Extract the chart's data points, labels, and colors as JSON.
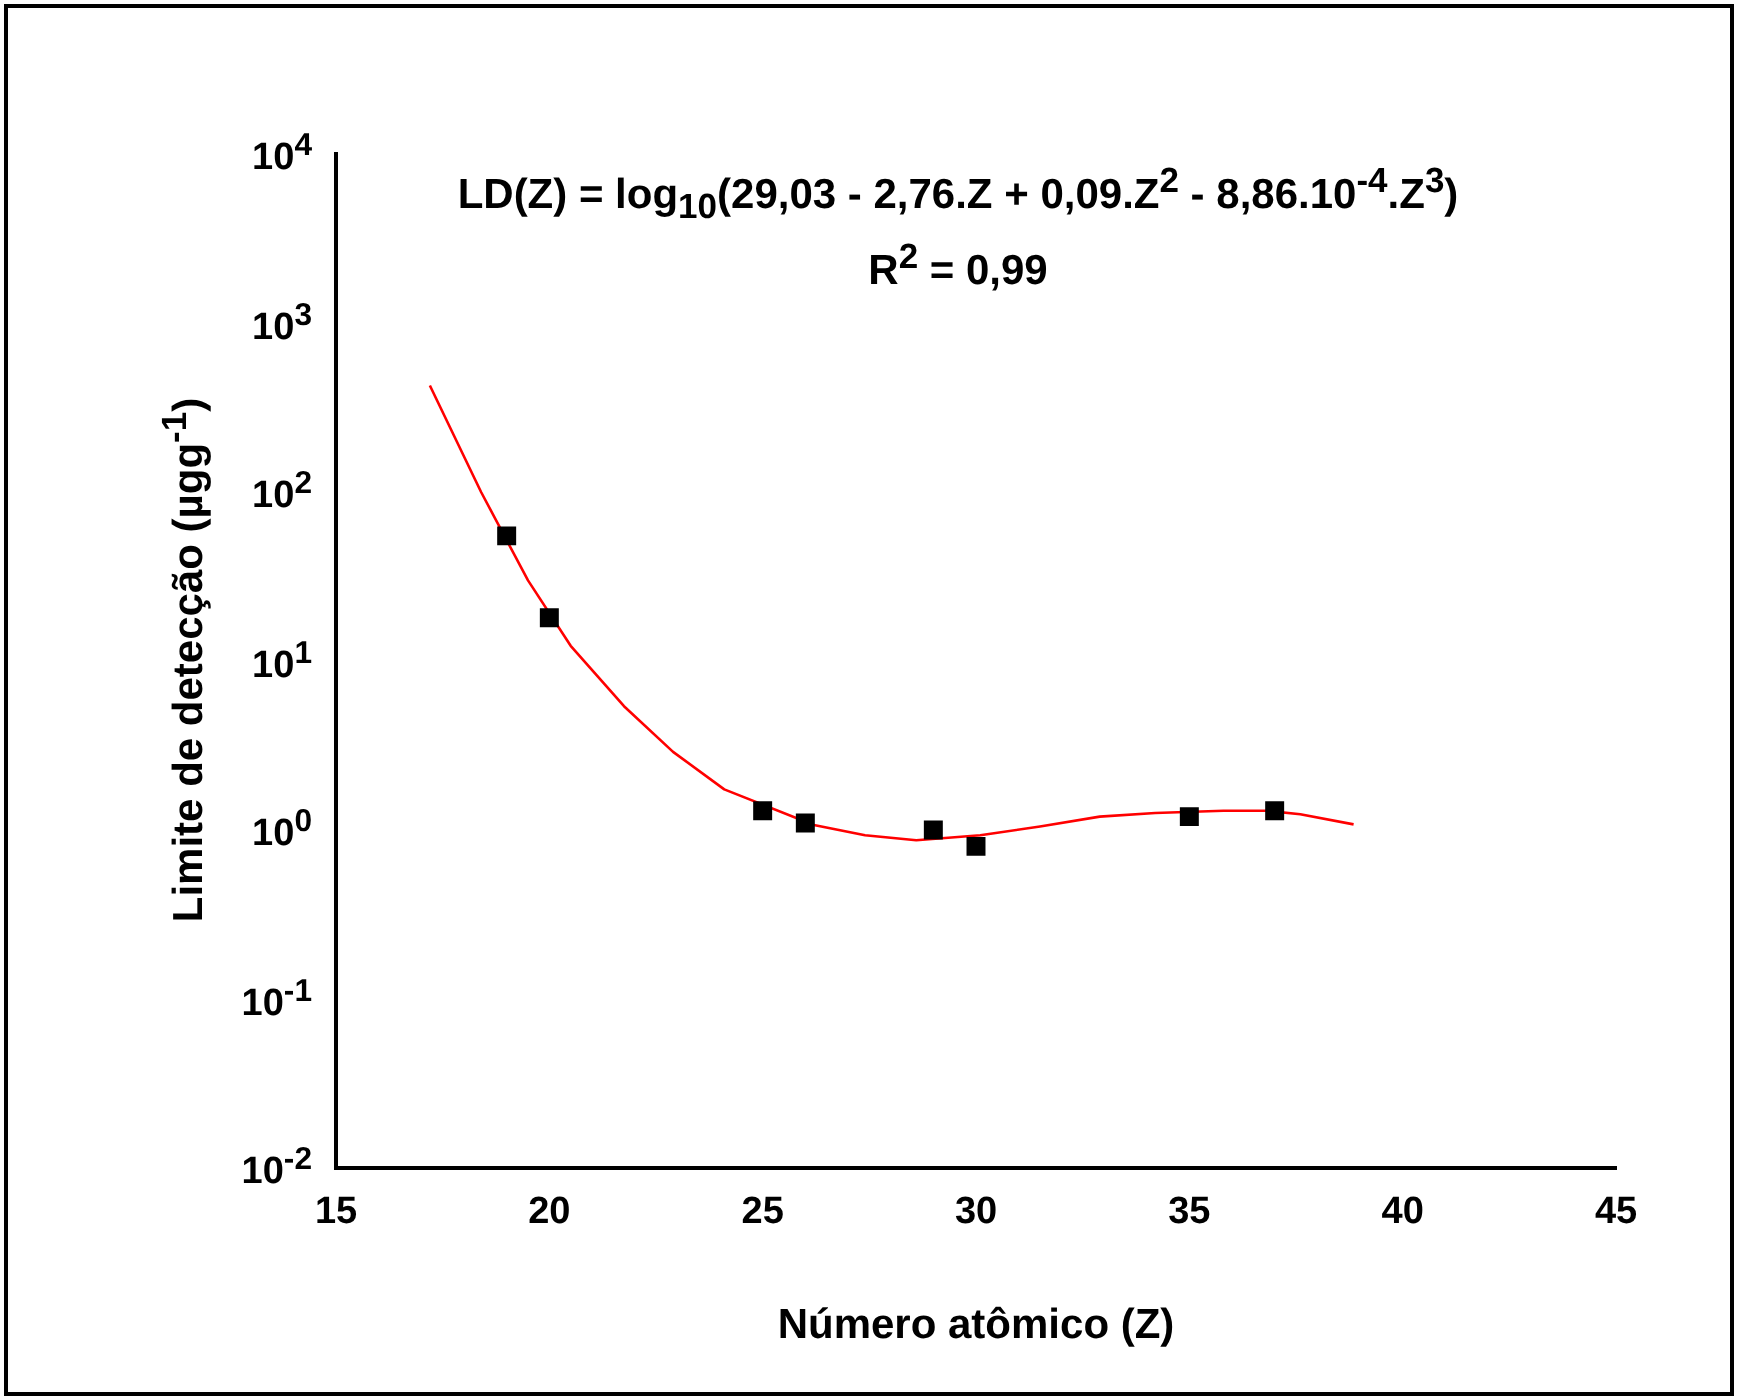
{
  "chart_data": {
    "type": "scatter",
    "xlabel": "Número atômico (Z)",
    "ylabel": "Limite de detecção (µgg$^{-1}$)",
    "annotations": [
      "LD(Z) = log$_{10}$(29,03 - 2,76.Z + 0,09.Z$^{2}$ - 8,86.10$^{-4}$.Z$^{3}$)",
      "R$^{2}$ = 0,99"
    ],
    "log": "y",
    "xlim": [
      15,
      45
    ],
    "xticks": [
      15,
      20,
      25,
      30,
      35,
      40,
      45
    ],
    "ylim": [
      0.01,
      10000
    ],
    "yticks": [
      {
        "value": 0.01,
        "label": "10$^{-2}$"
      },
      {
        "value": 0.1,
        "label": "10$^{-1}$"
      },
      {
        "value": 1,
        "label": "10$^{0}$"
      },
      {
        "value": 10,
        "label": "10$^{1}$"
      },
      {
        "value": 100,
        "label": "10$^{2}$"
      },
      {
        "value": 1000,
        "label": "10$^{3}$"
      },
      {
        "value": 10000,
        "label": "10$^{4}$"
      }
    ],
    "grid": false,
    "legend": false,
    "series": [
      {
        "type": "scatter",
        "marker": "square",
        "color": "#000000",
        "x": [
          19,
          20,
          25,
          26,
          29,
          30,
          35,
          37
        ],
        "values": [
          55,
          18,
          1.3,
          1.1,
          1.0,
          0.8,
          1.2,
          1.3
        ]
      },
      {
        "type": "line",
        "marker": "none",
        "color": "#ff0000",
        "x": [
          17.2,
          18.4,
          19.5,
          20.5,
          21.75,
          22.9,
          24.1,
          26.2,
          27.4,
          28.6,
          30.1,
          31.5,
          32.9,
          34.2,
          35.8,
          36.8,
          37.6,
          38.85
        ],
        "values": [
          427,
          100,
          30,
          12.3,
          5.4,
          2.9,
          1.74,
          1.07,
          0.93,
          0.87,
          0.93,
          1.05,
          1.2,
          1.26,
          1.3,
          1.3,
          1.24,
          1.08
        ]
      }
    ]
  }
}
